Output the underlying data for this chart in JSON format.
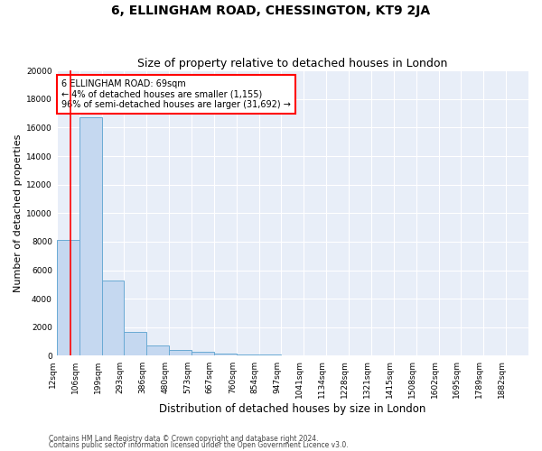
{
  "title": "6, ELLINGHAM ROAD, CHESSINGTON, KT9 2JA",
  "subtitle": "Size of property relative to detached houses in London",
  "xlabel": "Distribution of detached houses by size in London",
  "ylabel": "Number of detached properties",
  "bar_color": "#c5d8f0",
  "bar_edge_color": "#6aaad4",
  "background_color": "#e8eef8",
  "annotation_title": "6 ELLINGHAM ROAD: 69sqm",
  "annotation_line1": "← 4% of detached houses are smaller (1,155)",
  "annotation_line2": "96% of semi-detached houses are larger (31,692) →",
  "categories": [
    "12sqm",
    "106sqm",
    "199sqm",
    "293sqm",
    "386sqm",
    "480sqm",
    "573sqm",
    "667sqm",
    "760sqm",
    "854sqm",
    "947sqm",
    "1041sqm",
    "1134sqm",
    "1228sqm",
    "1321sqm",
    "1415sqm",
    "1508sqm",
    "1602sqm",
    "1695sqm",
    "1789sqm",
    "1882sqm"
  ],
  "n_bins": 21,
  "values": [
    8100,
    16700,
    5300,
    1700,
    700,
    380,
    260,
    180,
    120,
    90,
    60,
    45,
    30,
    25,
    18,
    12,
    9,
    7,
    5,
    4,
    3
  ],
  "vline_bin": 0.61,
  "ylim": [
    0,
    20000
  ],
  "yticks": [
    0,
    2000,
    4000,
    6000,
    8000,
    10000,
    12000,
    14000,
    16000,
    18000,
    20000
  ],
  "footer1": "Contains HM Land Registry data © Crown copyright and database right 2024.",
  "footer2": "Contains public sector information licensed under the Open Government Licence v3.0.",
  "grid_color": "#ffffff",
  "title_fontsize": 10,
  "subtitle_fontsize": 9,
  "tick_fontsize": 6.5,
  "ylabel_fontsize": 8,
  "xlabel_fontsize": 8.5
}
